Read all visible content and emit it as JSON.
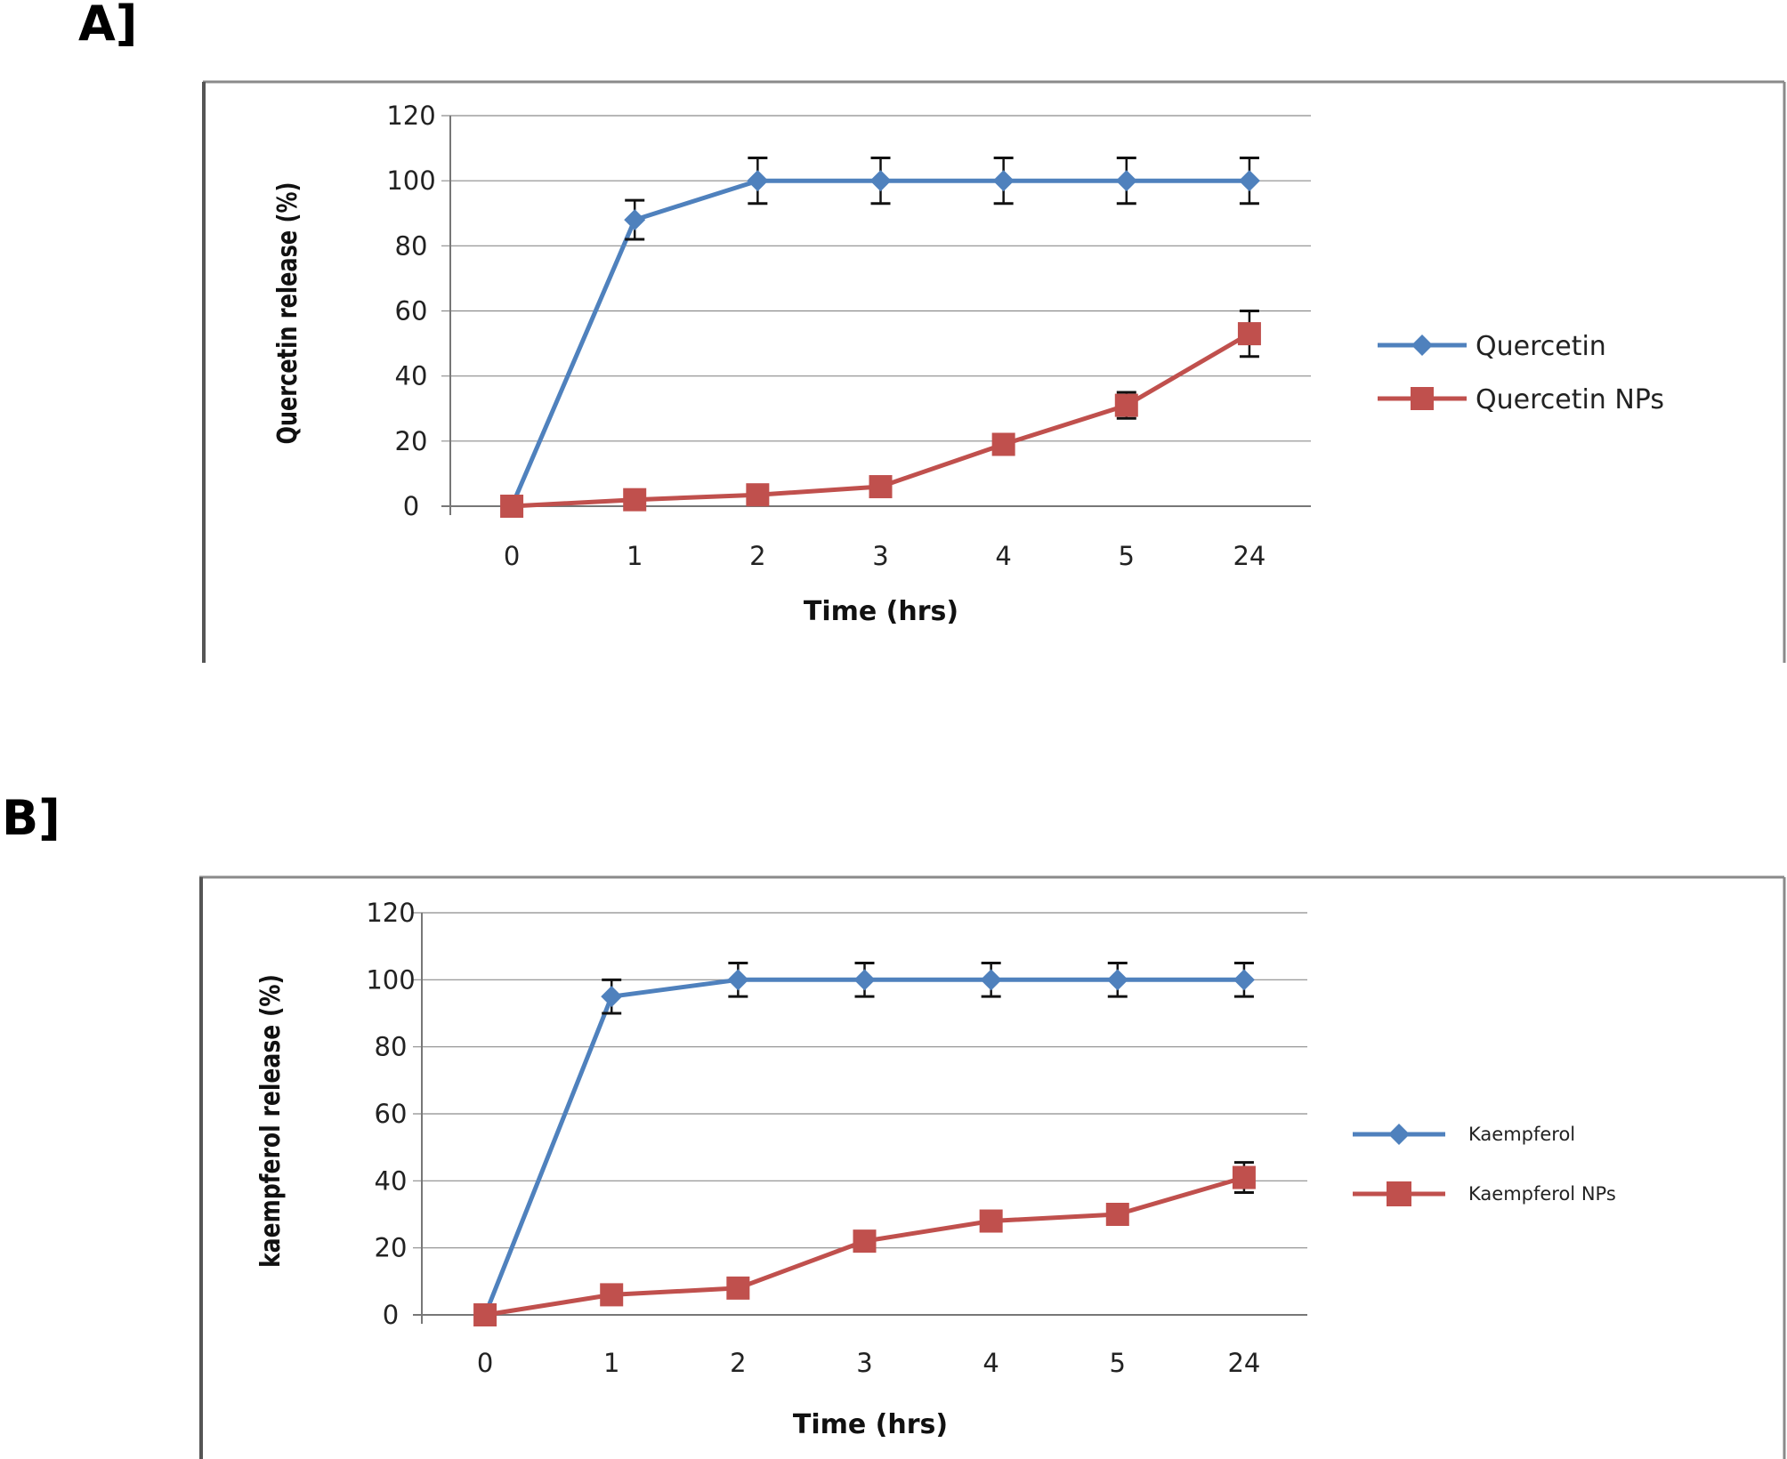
{
  "figure": {
    "panels": [
      "A]",
      "B]"
    ]
  },
  "chart_data": [
    {
      "type": "line",
      "panel": "A]",
      "title": "",
      "xlabel": "Time (hrs)",
      "ylabel": "Quercetin release (%)",
      "categories": [
        "0",
        "1",
        "2",
        "3",
        "4",
        "5",
        "24"
      ],
      "ylim": [
        0,
        120
      ],
      "yticks": [
        0,
        20,
        40,
        60,
        80,
        100,
        120
      ],
      "grid": true,
      "legend_position": "right",
      "series": [
        {
          "name": "Quercetin",
          "marker": "diamond",
          "color": "#4F81BD",
          "values": [
            0,
            88,
            100,
            100,
            100,
            100,
            100
          ],
          "errors": [
            0,
            6,
            7,
            7,
            7,
            7,
            7
          ]
        },
        {
          "name": "Quercetin NPs",
          "marker": "square",
          "color": "#C0504D",
          "values": [
            0,
            2,
            3.5,
            6,
            19,
            31,
            53
          ],
          "errors": [
            0,
            0,
            0,
            0,
            0,
            4,
            7
          ]
        }
      ]
    },
    {
      "type": "line",
      "panel": "B]",
      "title": "",
      "xlabel": "Time (hrs)",
      "ylabel": "kaempferol release (%)",
      "categories": [
        "0",
        "1",
        "2",
        "3",
        "4",
        "5",
        "24"
      ],
      "ylim": [
        0,
        120
      ],
      "yticks": [
        0,
        20,
        40,
        60,
        80,
        100,
        120
      ],
      "grid": true,
      "legend_position": "right",
      "series": [
        {
          "name": "Kaempferol",
          "marker": "diamond",
          "color": "#4F81BD",
          "values": [
            0,
            95,
            100,
            100,
            100,
            100,
            100
          ],
          "errors": [
            0,
            5,
            5,
            5,
            5,
            5,
            5
          ]
        },
        {
          "name": "Kaempferol NPs",
          "marker": "square",
          "color": "#C0504D",
          "values": [
            0,
            6,
            8,
            22,
            28,
            30,
            41
          ],
          "errors": [
            0,
            0,
            0,
            0,
            0,
            3,
            4.5
          ]
        }
      ]
    }
  ]
}
